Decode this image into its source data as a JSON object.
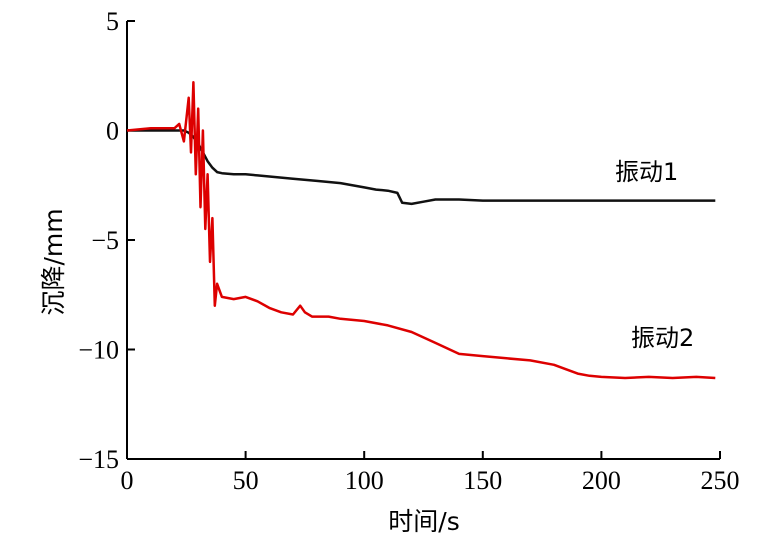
{
  "chart_data": {
    "type": "line",
    "title": "",
    "xlabel": "时间/s",
    "ylabel": "沉降/mm",
    "xlim": [
      0,
      250
    ],
    "ylim": [
      -15,
      5
    ],
    "grid": false,
    "xticks": [
      0,
      50,
      100,
      150,
      200,
      250
    ],
    "xtick_labels": [
      "0",
      "50",
      "100",
      "150",
      "200",
      "250"
    ],
    "yticks": [
      5,
      0,
      -5,
      -10,
      -15
    ],
    "ytick_labels": [
      "5",
      "0",
      "−5",
      "−10",
      "−15"
    ],
    "series": [
      {
        "name": "振动1",
        "color": "#111111",
        "x": [
          0,
          10,
          20,
          24,
          26,
          28,
          30,
          32,
          34,
          36,
          38,
          40,
          45,
          50,
          55,
          60,
          70,
          80,
          90,
          100,
          105,
          110,
          114,
          116,
          120,
          125,
          130,
          140,
          150,
          160,
          170,
          180,
          190,
          200,
          210,
          220,
          230,
          240,
          248
        ],
        "y": [
          0,
          0,
          0,
          0,
          -0.1,
          -0.3,
          -0.6,
          -1.0,
          -1.4,
          -1.7,
          -1.9,
          -1.95,
          -2.0,
          -2.0,
          -2.05,
          -2.1,
          -2.2,
          -2.3,
          -2.4,
          -2.6,
          -2.7,
          -2.75,
          -2.85,
          -3.3,
          -3.35,
          -3.25,
          -3.15,
          -3.15,
          -3.2,
          -3.2,
          -3.2,
          -3.2,
          -3.2,
          -3.2,
          -3.2,
          -3.2,
          -3.2,
          -3.2,
          -3.2
        ]
      },
      {
        "name": "振动2",
        "color": "#dd0000",
        "x": [
          0,
          10,
          20,
          22,
          24,
          26,
          27,
          28,
          29,
          30,
          31,
          32,
          33,
          34,
          35,
          36,
          37,
          38,
          40,
          45,
          50,
          55,
          60,
          65,
          70,
          73,
          75,
          78,
          80,
          85,
          90,
          100,
          110,
          120,
          130,
          140,
          150,
          160,
          170,
          180,
          185,
          190,
          195,
          200,
          210,
          220,
          230,
          240,
          248
        ],
        "y": [
          0,
          0.1,
          0.1,
          0.3,
          -0.5,
          1.5,
          -1.0,
          2.2,
          -2.0,
          1.0,
          -3.5,
          0.0,
          -4.5,
          -2.0,
          -6.0,
          -4.0,
          -8.0,
          -7.0,
          -7.6,
          -7.7,
          -7.6,
          -7.8,
          -8.1,
          -8.3,
          -8.4,
          -8.0,
          -8.3,
          -8.5,
          -8.5,
          -8.5,
          -8.6,
          -8.7,
          -8.9,
          -9.2,
          -9.7,
          -10.2,
          -10.3,
          -10.4,
          -10.5,
          -10.7,
          -10.9,
          -11.1,
          -11.2,
          -11.25,
          -11.3,
          -11.25,
          -11.3,
          -11.25,
          -11.3
        ]
      }
    ]
  }
}
